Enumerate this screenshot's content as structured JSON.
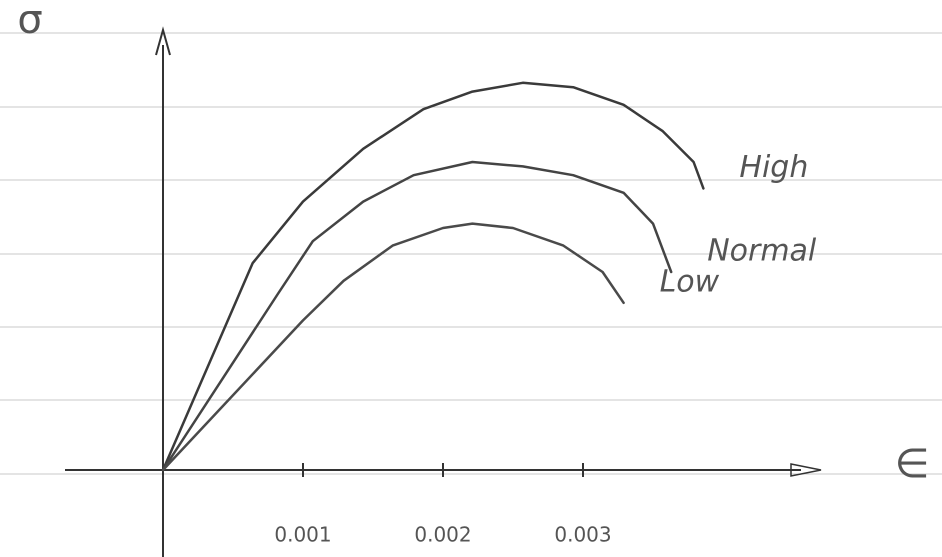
{
  "chart_data": {
    "type": "line",
    "y_label": "σ",
    "x_label": "∈",
    "xlim": [
      -0.0007,
      0.0047
    ],
    "ylim": [
      0,
      1
    ],
    "xticks": [
      0.001,
      0.002,
      0.003
    ],
    "series": [
      {
        "name": "High",
        "color": "#3a3a3a",
        "x": [
          0,
          0.00064,
          0.001,
          0.00143,
          0.00186,
          0.00221,
          0.00257,
          0.00293,
          0.00329,
          0.00357,
          0.00379,
          0.00386
        ],
        "values": [
          0,
          0.47,
          0.61,
          0.73,
          0.82,
          0.86,
          0.88,
          0.87,
          0.83,
          0.77,
          0.7,
          0.64
        ]
      },
      {
        "name": "Normal",
        "color": "#444444",
        "x": [
          0,
          0.00082,
          0.00107,
          0.00143,
          0.00179,
          0.00221,
          0.00257,
          0.00293,
          0.00329,
          0.0035,
          0.00363
        ],
        "values": [
          0,
          0.4,
          0.52,
          0.61,
          0.67,
          0.7,
          0.69,
          0.67,
          0.63,
          0.56,
          0.45
        ]
      },
      {
        "name": "Low",
        "color": "#4a4a4a",
        "x": [
          0,
          0.001,
          0.00129,
          0.00164,
          0.002,
          0.00221,
          0.0025,
          0.00286,
          0.00314,
          0.00329
        ],
        "values": [
          0,
          0.34,
          0.43,
          0.51,
          0.55,
          0.56,
          0.55,
          0.51,
          0.45,
          0.38
        ]
      }
    ]
  }
}
